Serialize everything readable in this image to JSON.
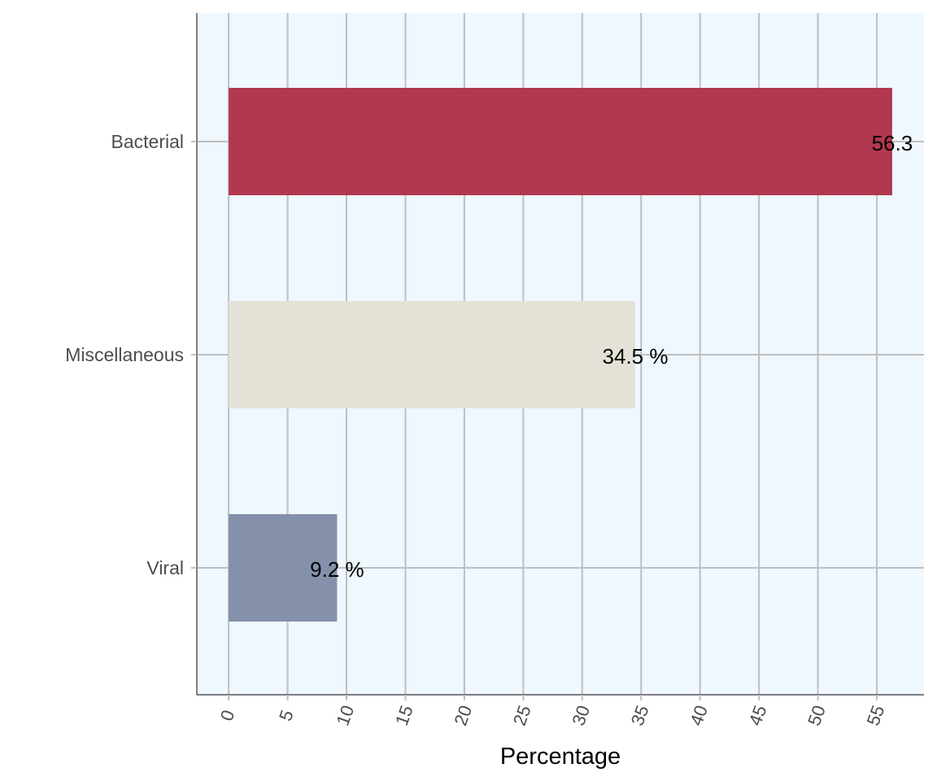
{
  "chart_data": {
    "type": "bar",
    "orientation": "horizontal",
    "categories": [
      "Bacterial",
      "Miscellaneous",
      "Viral"
    ],
    "values": [
      56.3,
      34.5,
      9.2
    ],
    "data_labels": [
      "56.3",
      "34.5 %",
      "9.2 %"
    ],
    "bar_colors": [
      "#b1384f",
      "#e4e2d6",
      "#8591aa"
    ],
    "xlabel": "Percentage",
    "ylabel": "",
    "title": "",
    "xlim": [
      -2.7,
      59
    ],
    "xticks": [
      0,
      5,
      10,
      15,
      20,
      25,
      30,
      35,
      40,
      45,
      50,
      55
    ],
    "xtick_labels": [
      "0",
      "5",
      "10",
      "15",
      "20",
      "25",
      "30",
      "35",
      "40",
      "45",
      "50",
      "55"
    ],
    "grid": true,
    "panel_background": "#eff7ff",
    "grid_color": "#bfbfbf"
  }
}
